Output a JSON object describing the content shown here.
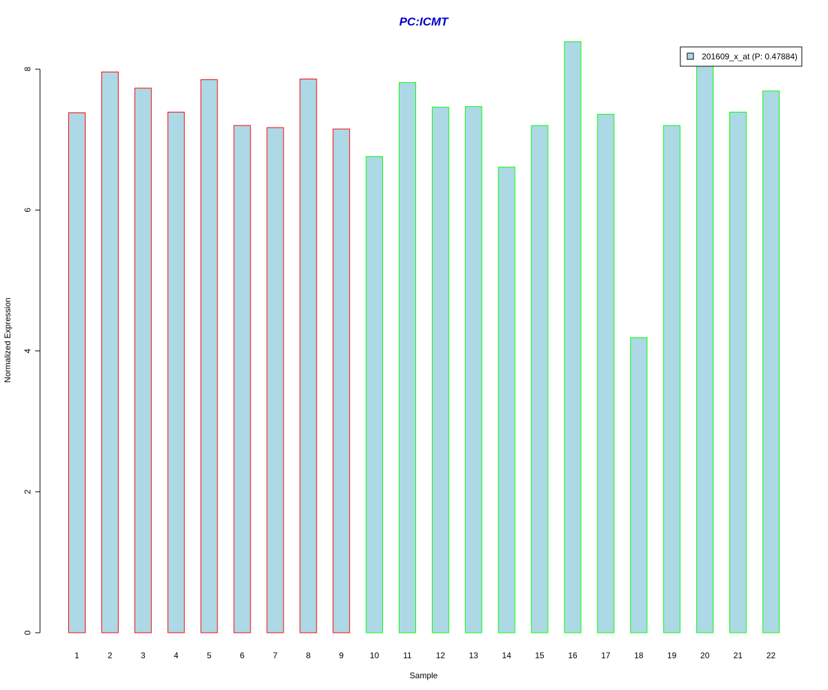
{
  "chart_data": {
    "type": "bar",
    "title": "PC:ICMT",
    "xlabel": "Sample",
    "ylabel": "Normalized Expression",
    "categories": [
      "1",
      "2",
      "3",
      "4",
      "5",
      "6",
      "7",
      "8",
      "9",
      "10",
      "11",
      "12",
      "13",
      "14",
      "15",
      "16",
      "17",
      "18",
      "19",
      "20",
      "21",
      "22"
    ],
    "values": [
      7.38,
      7.96,
      7.73,
      7.39,
      7.85,
      7.2,
      7.17,
      7.86,
      7.15,
      6.76,
      7.81,
      7.46,
      7.47,
      6.61,
      7.2,
      8.39,
      7.36,
      4.19,
      7.2,
      8.1,
      7.39,
      7.69
    ],
    "ylim": [
      0,
      8.4
    ],
    "yticks": [
      "0",
      "2",
      "4",
      "6",
      "8"
    ],
    "legend": {
      "label": "201609_x_at (P: 0.47884)",
      "position": "top-right"
    },
    "grid": false,
    "colors": {
      "title": "#0000cc",
      "bar_fill": "#add8e6",
      "group1_border": "#ff0000",
      "group2_border": "#00ff00",
      "axis": "#000000"
    },
    "bar_groups": [
      "group1",
      "group1",
      "group1",
      "group1",
      "group1",
      "group1",
      "group1",
      "group1",
      "group1",
      "group2",
      "group2",
      "group2",
      "group2",
      "group2",
      "group2",
      "group2",
      "group2",
      "group2",
      "group2",
      "group2",
      "group2",
      "group2"
    ]
  }
}
